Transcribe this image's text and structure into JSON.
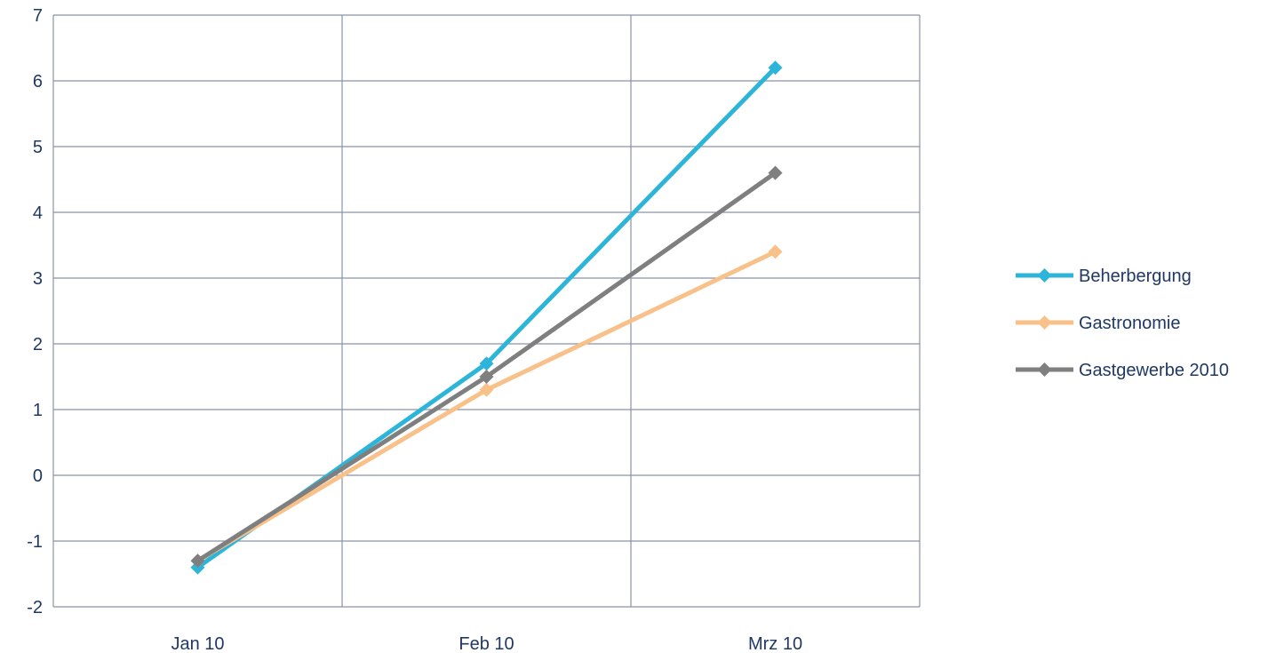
{
  "chart_data": {
    "type": "line",
    "categories": [
      "Jan 10",
      "Feb 10",
      "Mrz 10"
    ],
    "ylim": [
      -2,
      7
    ],
    "yticks": [
      -2,
      -1,
      0,
      1,
      2,
      3,
      4,
      5,
      6,
      7
    ],
    "grid": true,
    "legend_position": "right",
    "marker": "diamond",
    "series": [
      {
        "name": "Beherbergung",
        "color": "#2cb5d8",
        "values": [
          -1.4,
          1.7,
          6.2
        ]
      },
      {
        "name": "Gastronomie",
        "color": "#f8c18a",
        "values": [
          -1.3,
          1.3,
          3.4
        ]
      },
      {
        "name": "Gastgewerbe 2010",
        "color": "#7f7f7f",
        "values": [
          -1.3,
          1.5,
          4.6
        ]
      }
    ]
  }
}
